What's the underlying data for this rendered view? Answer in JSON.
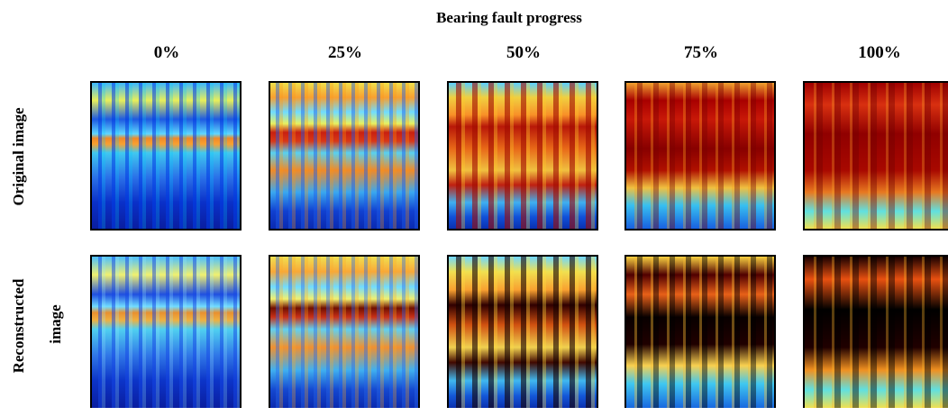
{
  "title": "Bearing fault progress",
  "columns": [
    "0%",
    "25%",
    "50%",
    "75%",
    "100%"
  ],
  "rows": [
    {
      "label": "Original image"
    },
    {
      "label": "Reconstructed",
      "label_2": "image"
    }
  ]
}
